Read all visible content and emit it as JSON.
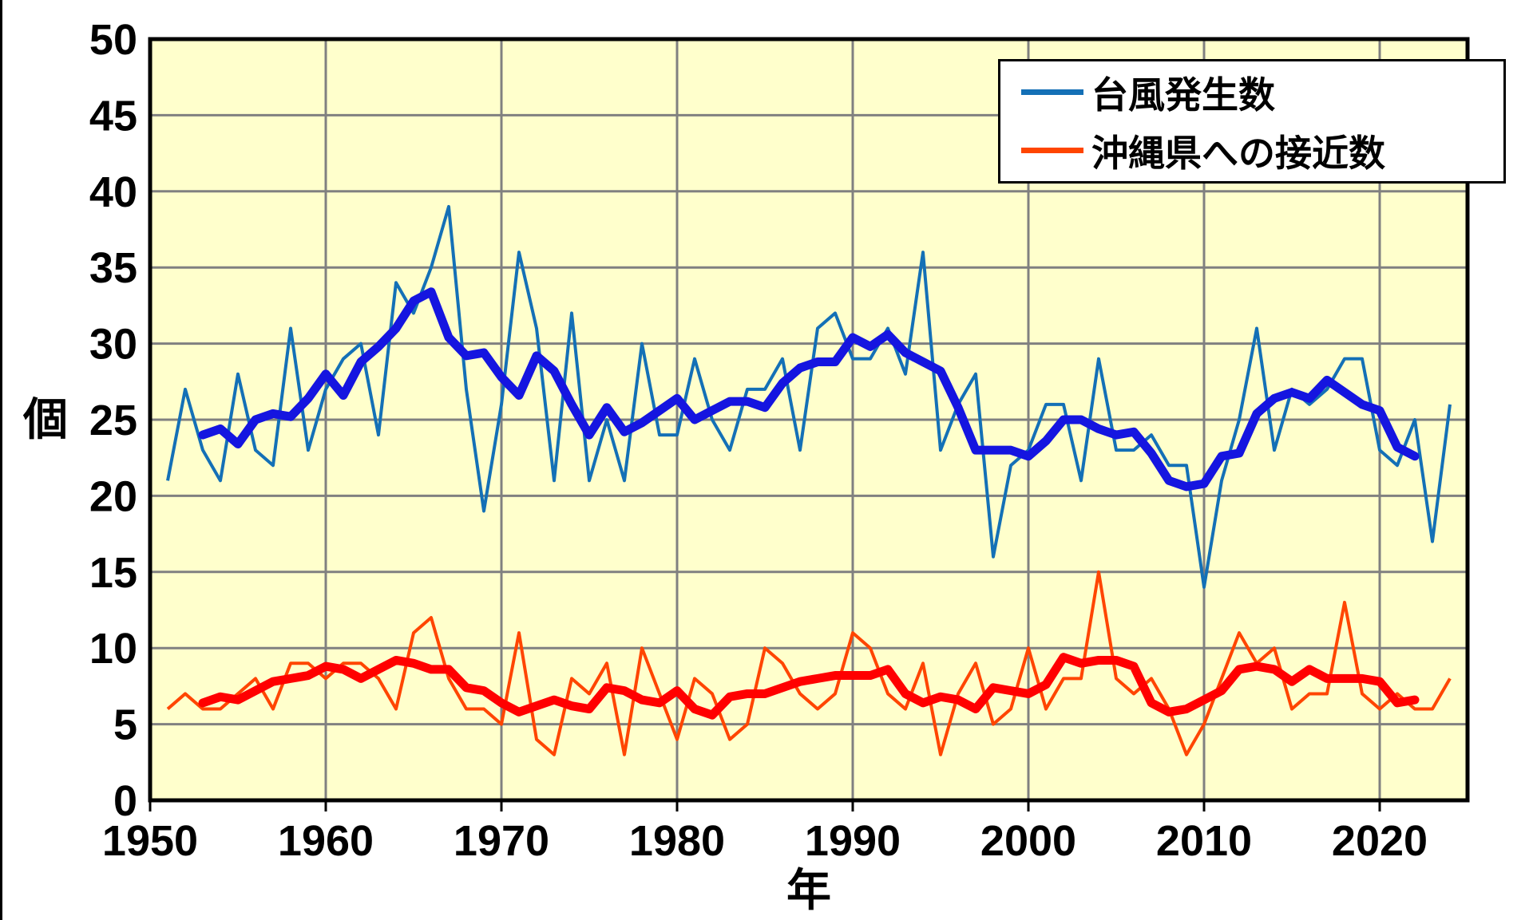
{
  "axis_titles": {
    "y": "個",
    "x": "年"
  },
  "legend": {
    "items": [
      {
        "label": "台風発生数"
      },
      {
        "label": "沖縄県への接近数"
      }
    ]
  },
  "chart_data": {
    "type": "line",
    "title": "",
    "xlabel": "年",
    "ylabel": "個",
    "x_years": [
      1951,
      1952,
      1953,
      1954,
      1955,
      1956,
      1957,
      1958,
      1959,
      1960,
      1961,
      1962,
      1963,
      1964,
      1965,
      1966,
      1967,
      1968,
      1969,
      1970,
      1971,
      1972,
      1973,
      1974,
      1975,
      1976,
      1977,
      1978,
      1979,
      1980,
      1981,
      1982,
      1983,
      1984,
      1985,
      1986,
      1987,
      1988,
      1989,
      1990,
      1991,
      1992,
      1993,
      1994,
      1995,
      1996,
      1997,
      1998,
      1999,
      2000,
      2001,
      2002,
      2003,
      2004,
      2005,
      2006,
      2007,
      2008,
      2009,
      2010,
      2011,
      2012,
      2013,
      2014,
      2015,
      2016,
      2017,
      2018,
      2019,
      2020,
      2021,
      2022,
      2023,
      2024
    ],
    "series": [
      {
        "name": "台風発生数",
        "color_thin": "#1470B6",
        "color_thick": "#1515E0",
        "values": [
          21,
          27,
          23,
          21,
          28,
          23,
          22,
          31,
          23,
          27,
          29,
          30,
          24,
          34,
          32,
          35,
          39,
          27,
          19,
          26,
          36,
          31,
          21,
          32,
          21,
          25,
          21,
          30,
          24,
          24,
          29,
          25,
          23,
          27,
          27,
          29,
          23,
          31,
          32,
          29,
          29,
          31,
          28,
          36,
          23,
          26,
          28,
          16,
          22,
          23,
          26,
          26,
          21,
          29,
          23,
          23,
          24,
          22,
          22,
          14,
          21,
          25,
          31,
          23,
          27,
          26,
          27,
          29,
          29,
          23,
          22,
          25,
          17,
          26
        ]
      },
      {
        "name": "沖縄県への接近数",
        "color_thin": "#FF4500",
        "color_thick": "#FF0000",
        "values": [
          6,
          7,
          6,
          6,
          7,
          8,
          6,
          9,
          9,
          8,
          9,
          9,
          8,
          6,
          11,
          12,
          8,
          6,
          6,
          5,
          11,
          4,
          3,
          8,
          7,
          9,
          3,
          10,
          7,
          4,
          8,
          7,
          4,
          5,
          10,
          9,
          7,
          6,
          7,
          11,
          10,
          7,
          6,
          9,
          3,
          7,
          9,
          5,
          6,
          10,
          6,
          8,
          8,
          15,
          8,
          7,
          8,
          6,
          3,
          5,
          8,
          11,
          9,
          10,
          6,
          7,
          7,
          13,
          7,
          6,
          7,
          6,
          6,
          8
        ]
      }
    ],
    "moving_average_window": 5,
    "axes": {
      "ylim": [
        0,
        50
      ],
      "ytick_step": 5,
      "yticks": [
        0,
        5,
        10,
        15,
        20,
        25,
        30,
        35,
        40,
        45,
        50
      ],
      "xlim": [
        1950,
        2025
      ],
      "xticks": [
        1950,
        1960,
        1970,
        1980,
        1990,
        2000,
        2010,
        2020
      ],
      "grid": true
    },
    "legend_position": "top-right",
    "colors": {
      "plot_bg": "#FFFFCC",
      "grid": "#808080",
      "border": "#000000",
      "text": "#000000"
    }
  }
}
